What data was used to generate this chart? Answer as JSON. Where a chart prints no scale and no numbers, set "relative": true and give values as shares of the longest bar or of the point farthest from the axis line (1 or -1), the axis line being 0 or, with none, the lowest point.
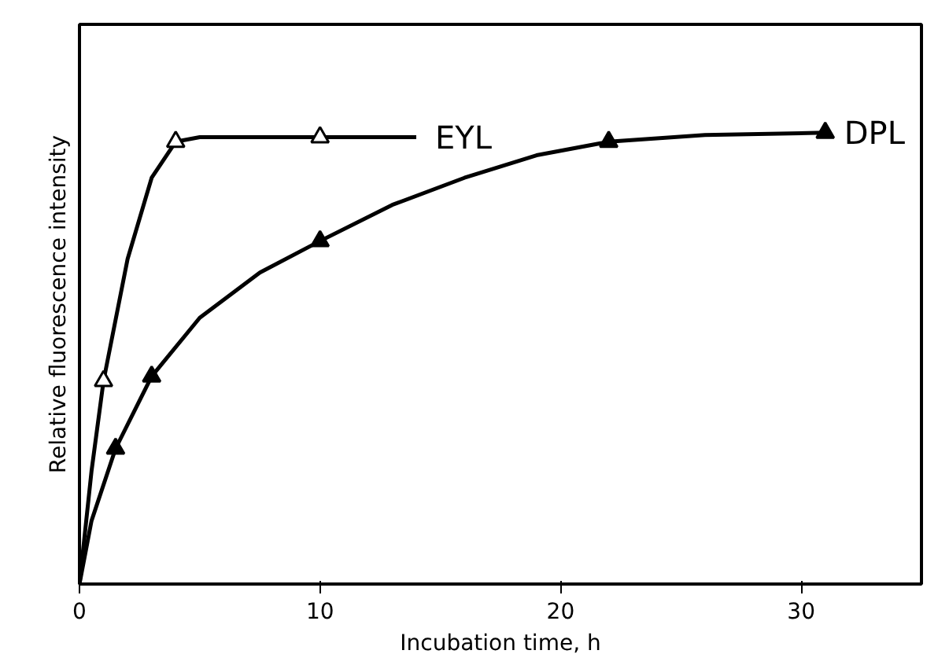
{
  "chart_data": {
    "type": "line",
    "relative": true,
    "xlabel": "Incubation time, h",
    "ylabel": "Relative fluorescence intensity",
    "xlim": [
      0,
      35
    ],
    "xticks": [
      0,
      10,
      20,
      30
    ],
    "grid": false,
    "line_style": "solid",
    "series": [
      {
        "name": "EYL",
        "color": "#000000",
        "x": [
          0,
          0.5,
          1,
          2,
          3,
          4,
          5,
          10,
          14
        ],
        "values": [
          0,
          0.25,
          0.45,
          0.72,
          0.9,
          0.98,
          0.99,
          0.99,
          0.99
        ]
      },
      {
        "name": "DPL",
        "color": "#000000",
        "x": [
          0,
          0.5,
          1.5,
          3,
          5,
          7.5,
          10,
          13,
          16,
          19,
          22,
          26,
          31
        ],
        "values": [
          0,
          0.14,
          0.3,
          0.46,
          0.59,
          0.69,
          0.76,
          0.84,
          0.9,
          0.95,
          0.98,
          0.995,
          1.0
        ]
      },
      {
        "type": "scatter",
        "color": "#000000",
        "marker": "triangle_open",
        "x": [
          1,
          4,
          10
        ],
        "values": [
          0.45,
          0.98,
          0.99
        ]
      },
      {
        "type": "scatter",
        "color": "#000000",
        "marker": "triangle",
        "x": [
          1.5,
          3,
          10,
          22,
          31
        ],
        "values": [
          0.3,
          0.46,
          0.76,
          0.98,
          1.0
        ]
      }
    ]
  }
}
